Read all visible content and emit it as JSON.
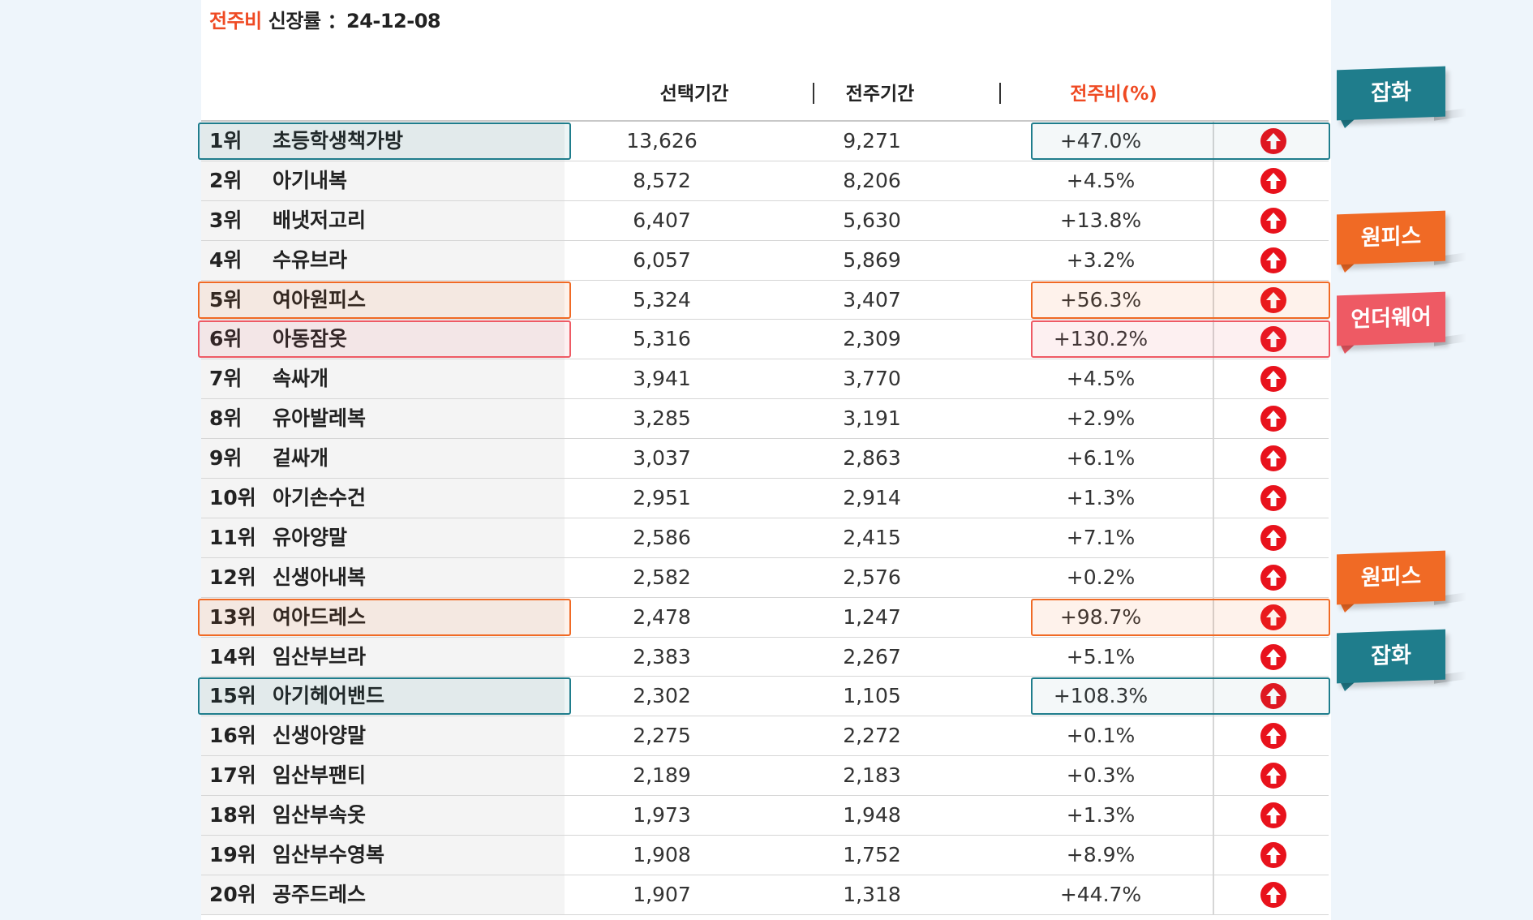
{
  "title": {
    "accent": "전주비",
    "label": "신장률",
    "date": "：24-12-08"
  },
  "headers": {
    "selected_period": "선택기간",
    "previous_period": "전주기간",
    "change": "전주비(%)"
  },
  "colors": {
    "accent_red": "#ef4a23",
    "teal": "#1f7d8c",
    "orange": "#f06a25",
    "pink": "#ee5a64",
    "up_icon": "#e8121c"
  },
  "rows": [
    {
      "rank": "1위",
      "name": "초등학생책가방",
      "selected": "13,626",
      "previous": "9,271",
      "change": "+47.0%",
      "trend_icon": "arrow-up-icon",
      "highlight": "teal"
    },
    {
      "rank": "2위",
      "name": "아기내복",
      "selected": "8,572",
      "previous": "8,206",
      "change": "+4.5%",
      "trend_icon": "arrow-up-icon",
      "highlight": ""
    },
    {
      "rank": "3위",
      "name": "배냇저고리",
      "selected": "6,407",
      "previous": "5,630",
      "change": "+13.8%",
      "trend_icon": "arrow-up-icon",
      "highlight": ""
    },
    {
      "rank": "4위",
      "name": "수유브라",
      "selected": "6,057",
      "previous": "5,869",
      "change": "+3.2%",
      "trend_icon": "arrow-up-icon",
      "highlight": ""
    },
    {
      "rank": "5위",
      "name": "여아원피스",
      "selected": "5,324",
      "previous": "3,407",
      "change": "+56.3%",
      "trend_icon": "arrow-up-icon",
      "highlight": "orange"
    },
    {
      "rank": "6위",
      "name": "아동잠옷",
      "selected": "5,316",
      "previous": "2,309",
      "change": "+130.2%",
      "trend_icon": "arrow-up-icon",
      "highlight": "pink"
    },
    {
      "rank": "7위",
      "name": "속싸개",
      "selected": "3,941",
      "previous": "3,770",
      "change": "+4.5%",
      "trend_icon": "arrow-up-icon",
      "highlight": ""
    },
    {
      "rank": "8위",
      "name": "유아발레복",
      "selected": "3,285",
      "previous": "3,191",
      "change": "+2.9%",
      "trend_icon": "arrow-up-icon",
      "highlight": ""
    },
    {
      "rank": "9위",
      "name": "겉싸개",
      "selected": "3,037",
      "previous": "2,863",
      "change": "+6.1%",
      "trend_icon": "arrow-up-icon",
      "highlight": ""
    },
    {
      "rank": "10위",
      "name": "아기손수건",
      "selected": "2,951",
      "previous": "2,914",
      "change": "+1.3%",
      "trend_icon": "arrow-up-icon",
      "highlight": ""
    },
    {
      "rank": "11위",
      "name": "유아양말",
      "selected": "2,586",
      "previous": "2,415",
      "change": "+7.1%",
      "trend_icon": "arrow-up-icon",
      "highlight": ""
    },
    {
      "rank": "12위",
      "name": "신생아내복",
      "selected": "2,582",
      "previous": "2,576",
      "change": "+0.2%",
      "trend_icon": "arrow-up-icon",
      "highlight": ""
    },
    {
      "rank": "13위",
      "name": "여아드레스",
      "selected": "2,478",
      "previous": "1,247",
      "change": "+98.7%",
      "trend_icon": "arrow-up-icon",
      "highlight": "orange"
    },
    {
      "rank": "14위",
      "name": "임산부브라",
      "selected": "2,383",
      "previous": "2,267",
      "change": "+5.1%",
      "trend_icon": "arrow-up-icon",
      "highlight": ""
    },
    {
      "rank": "15위",
      "name": "아기헤어밴드",
      "selected": "2,302",
      "previous": "1,105",
      "change": "+108.3%",
      "trend_icon": "arrow-up-icon",
      "highlight": "teal"
    },
    {
      "rank": "16위",
      "name": "신생아양말",
      "selected": "2,275",
      "previous": "2,272",
      "change": "+0.1%",
      "trend_icon": "arrow-up-icon",
      "highlight": ""
    },
    {
      "rank": "17위",
      "name": "임산부팬티",
      "selected": "2,189",
      "previous": "2,183",
      "change": "+0.3%",
      "trend_icon": "arrow-up-icon",
      "highlight": ""
    },
    {
      "rank": "18위",
      "name": "임산부속옷",
      "selected": "1,973",
      "previous": "1,948",
      "change": "+1.3%",
      "trend_icon": "arrow-up-icon",
      "highlight": ""
    },
    {
      "rank": "19위",
      "name": "임산부수영복",
      "selected": "1,908",
      "previous": "1,752",
      "change": "+8.9%",
      "trend_icon": "arrow-up-icon",
      "highlight": ""
    },
    {
      "rank": "20위",
      "name": "공주드레스",
      "selected": "1,907",
      "previous": "1,318",
      "change": "+44.7%",
      "trend_icon": "arrow-up-icon",
      "highlight": ""
    }
  ],
  "callouts": [
    {
      "label": "잡화",
      "color": "#1f7d8c"
    },
    {
      "label": "원피스",
      "color": "#f06a25"
    },
    {
      "label": "언더웨어",
      "color": "#ee5a64"
    },
    {
      "label": "원피스",
      "color": "#f06a25"
    },
    {
      "label": "잡화",
      "color": "#1f7d8c"
    }
  ]
}
